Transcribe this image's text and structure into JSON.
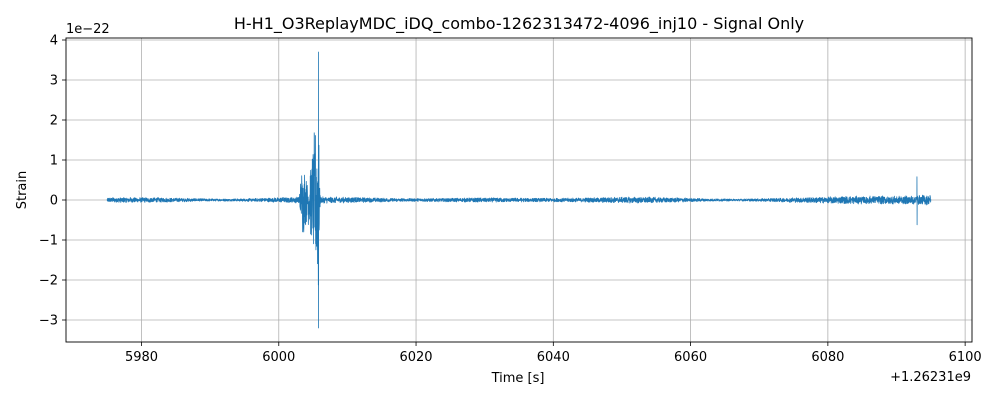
{
  "chart_data": {
    "type": "line",
    "title": "H-H1_O3ReplayMDC_iDQ_combo-1262313472-4096_inj10 - Signal Only",
    "xlabel": "Time [s]",
    "ylabel": "Strain",
    "x_offset_label": "+1.26231e9",
    "y_scale_label": "1e−22",
    "xlim": [
      5969,
      6101
    ],
    "ylim": [
      -3.55,
      4.05
    ],
    "x_ticks": [
      5980,
      6000,
      6020,
      6040,
      6060,
      6080,
      6100
    ],
    "x_tick_labels": [
      "5980",
      "6000",
      "6020",
      "6040",
      "6060",
      "6080",
      "6100"
    ],
    "y_ticks": [
      -3,
      -2,
      -1,
      0,
      1,
      2,
      3,
      4
    ],
    "y_tick_labels": [
      "−3",
      "−2",
      "−1",
      "0",
      "1",
      "2",
      "3",
      "4"
    ],
    "grid": true,
    "series": [
      {
        "color": "#1f77b4",
        "x_range": [
          5975,
          6095
        ],
        "features": {
          "baseline_amplitude": 0.07,
          "burst": {
            "start": 6002.5,
            "peak_time": 6005.8,
            "min_value": -3.2,
            "max_value": 3.7
          },
          "late_glitch": {
            "time": 6093,
            "min_value": -0.62,
            "max_value": 0.58
          }
        }
      }
    ]
  },
  "colors": {
    "series": "#1f77b4",
    "grid": "#b0b0b0",
    "axes": "#000000",
    "background": "#ffffff"
  }
}
